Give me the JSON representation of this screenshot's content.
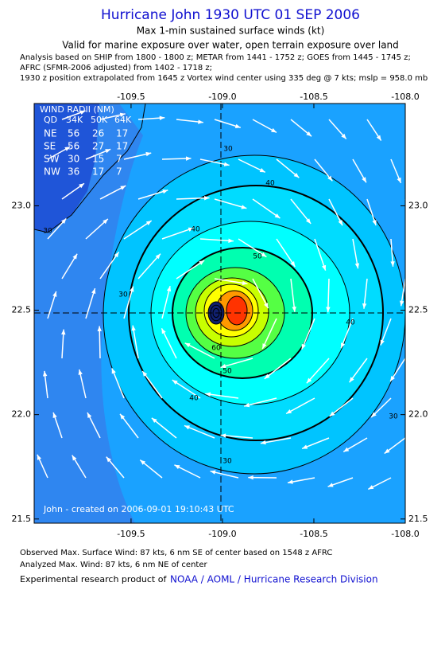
{
  "header": {
    "title": "Hurricane John 1930 UTC 01 SEP 2006",
    "subtitle": "Max 1-min sustained surface winds (kt)",
    "validity": "Valid for marine exposure over water, open terrain exposure over land",
    "notes": [
      "Analysis based on  SHIP from 1800 - 1800 z;  METAR from 1441 - 1752 z;  GOES from 1445 - 1745 z;",
      "AFRC (SFMR-2006 adjusted) from 1402 - 1718 z;",
      "1930 z position extrapolated from 1645 z Vortex wind center using 335 deg @ 7 kts; mslp = 958.0 mb"
    ]
  },
  "map": {
    "xlim": [
      -110.03,
      -108.0
    ],
    "ylim": [
      21.48,
      23.49
    ],
    "xticks": [
      -109.5,
      {
        "value": -109,
        "label": "-109.0"
      },
      -108.5,
      {
        "value": -108,
        "label": "-108.0"
      }
    ],
    "yticks": [
      {
        "value": 23,
        "label": "23.0"
      },
      22.5,
      {
        "value": 22,
        "label": "22.0"
      },
      21.5
    ],
    "contour_labels": [
      30,
      30,
      30,
      40,
      40,
      40,
      50,
      50,
      60,
      30,
      40,
      30
    ]
  },
  "wind_radii": {
    "title": "WIND RADII (NM)",
    "header": [
      "QD",
      "34K",
      "50K",
      "64K"
    ],
    "rows": [
      [
        "NE",
        56,
        26,
        17
      ],
      [
        "SE",
        56,
        27,
        17
      ],
      [
        "SW",
        30,
        15,
        7
      ],
      [
        "NW",
        36,
        17,
        7
      ]
    ]
  },
  "credit": "John - created on 2006-09-01 19:10:43 UTC",
  "footer": {
    "observed": "Observed Max. Surface Wind: 87 kts, 6 nm SE of center based on 1548 z AFRC",
    "analyzed": "Analyzed Max. Wind: 87 kts, 6 nm NE of center",
    "product_prefix": "Experimental research product of",
    "product_link": "NOAA / AOML / Hurricane Research Division"
  }
}
